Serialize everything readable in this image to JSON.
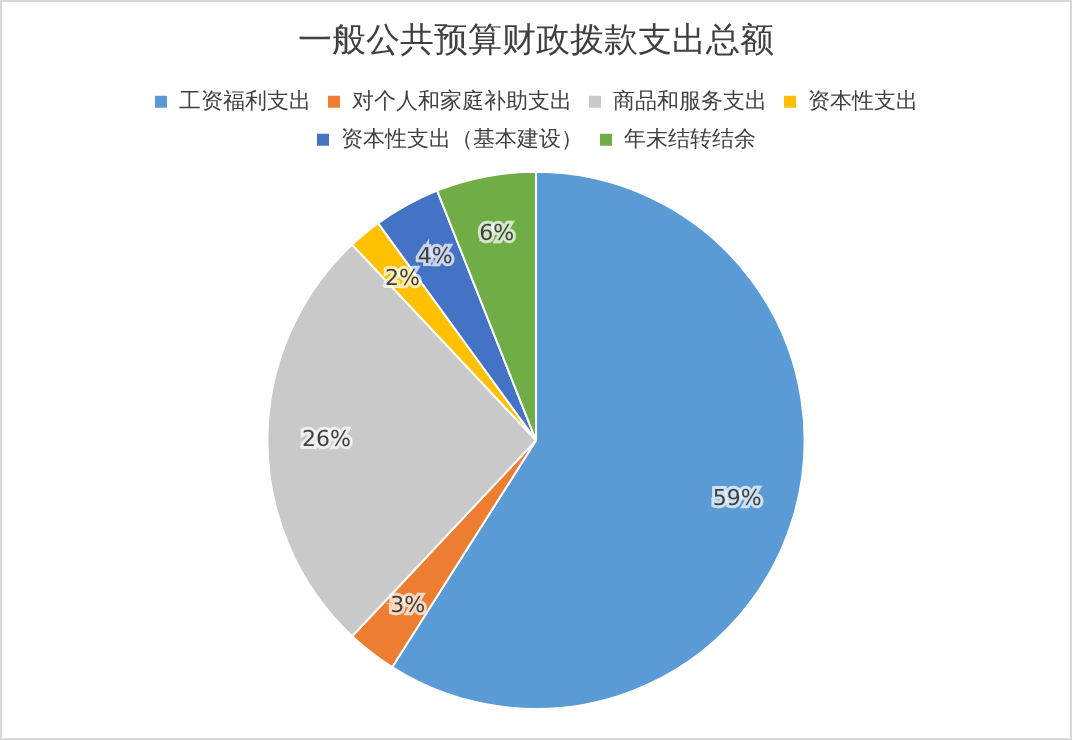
{
  "chart_data": {
    "type": "pie",
    "title": "一般公共预算财政拨款支出总额",
    "categories": [
      "工资福利支出",
      "对个人和家庭补助支出",
      "商品和服务支出",
      "资本性支出",
      "资本性支出（基本建设）",
      "年末结转结余"
    ],
    "values": [
      59,
      3,
      26,
      2,
      4,
      6
    ],
    "colors": [
      "#5b9bd5",
      "#ed7d31",
      "#c9c9c9",
      "#ffc000",
      "#4472c4",
      "#70ad47"
    ],
    "value_labels": [
      "59%",
      "3%",
      "26%",
      "2%",
      "4%",
      "6%"
    ],
    "legend": "top"
  }
}
